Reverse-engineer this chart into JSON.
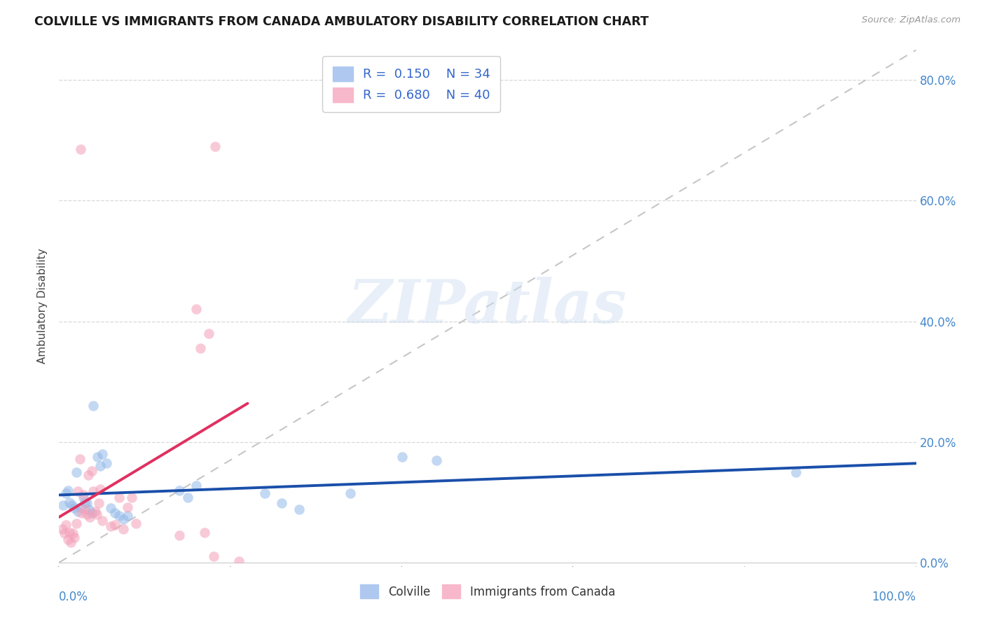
{
  "title": "COLVILLE VS IMMIGRANTS FROM CANADA AMBULATORY DISABILITY CORRELATION CHART",
  "source": "Source: ZipAtlas.com",
  "ylabel": "Ambulatory Disability",
  "colville_color": "#93b8e8",
  "immigrants_color": "#f4a0b8",
  "colville_line_color": "#1a4faa",
  "immigrants_line_color": "#e03060",
  "diagonal_color": "#c0c0c0",
  "background_color": "#ffffff",
  "grid_color": "#d8d8d8",
  "watermark_text": "ZIPatlas",
  "colville_points": [
    [
      0.005,
      0.095
    ],
    [
      0.008,
      0.115
    ],
    [
      0.01,
      0.12
    ],
    [
      0.012,
      0.1
    ],
    [
      0.015,
      0.095
    ],
    [
      0.018,
      0.09
    ],
    [
      0.02,
      0.15
    ],
    [
      0.022,
      0.085
    ],
    [
      0.025,
      0.092
    ],
    [
      0.028,
      0.108
    ],
    [
      0.03,
      0.1
    ],
    [
      0.032,
      0.098
    ],
    [
      0.035,
      0.088
    ],
    [
      0.038,
      0.082
    ],
    [
      0.04,
      0.26
    ],
    [
      0.045,
      0.175
    ],
    [
      0.048,
      0.16
    ],
    [
      0.05,
      0.18
    ],
    [
      0.055,
      0.165
    ],
    [
      0.06,
      0.09
    ],
    [
      0.065,
      0.082
    ],
    [
      0.07,
      0.078
    ],
    [
      0.075,
      0.072
    ],
    [
      0.08,
      0.078
    ],
    [
      0.14,
      0.12
    ],
    [
      0.15,
      0.108
    ],
    [
      0.16,
      0.128
    ],
    [
      0.24,
      0.115
    ],
    [
      0.26,
      0.098
    ],
    [
      0.28,
      0.088
    ],
    [
      0.34,
      0.115
    ],
    [
      0.4,
      0.175
    ],
    [
      0.44,
      0.17
    ],
    [
      0.86,
      0.15
    ]
  ],
  "immigrants_points": [
    [
      0.004,
      0.055
    ],
    [
      0.006,
      0.048
    ],
    [
      0.008,
      0.062
    ],
    [
      0.01,
      0.038
    ],
    [
      0.012,
      0.05
    ],
    [
      0.014,
      0.033
    ],
    [
      0.016,
      0.048
    ],
    [
      0.018,
      0.042
    ],
    [
      0.02,
      0.065
    ],
    [
      0.022,
      0.118
    ],
    [
      0.024,
      0.172
    ],
    [
      0.026,
      0.082
    ],
    [
      0.028,
      0.112
    ],
    [
      0.03,
      0.088
    ],
    [
      0.032,
      0.08
    ],
    [
      0.034,
      0.145
    ],
    [
      0.036,
      0.075
    ],
    [
      0.038,
      0.152
    ],
    [
      0.04,
      0.118
    ],
    [
      0.042,
      0.085
    ],
    [
      0.044,
      0.08
    ],
    [
      0.046,
      0.098
    ],
    [
      0.048,
      0.122
    ],
    [
      0.05,
      0.07
    ],
    [
      0.06,
      0.06
    ],
    [
      0.065,
      0.062
    ],
    [
      0.07,
      0.108
    ],
    [
      0.075,
      0.055
    ],
    [
      0.08,
      0.092
    ],
    [
      0.085,
      0.108
    ],
    [
      0.09,
      0.065
    ],
    [
      0.14,
      0.045
    ],
    [
      0.16,
      0.42
    ],
    [
      0.165,
      0.355
    ],
    [
      0.17,
      0.05
    ],
    [
      0.175,
      0.38
    ],
    [
      0.18,
      0.01
    ],
    [
      0.182,
      0.69
    ],
    [
      0.025,
      0.685
    ],
    [
      0.21,
      0.002
    ]
  ],
  "xlim": [
    0.0,
    1.0
  ],
  "ylim": [
    0.0,
    0.85
  ],
  "ytick_vals": [
    0.0,
    0.2,
    0.4,
    0.6,
    0.8
  ],
  "ytick_labels": [
    "0.0%",
    "20.0%",
    "40.0%",
    "60.0%",
    "80.0%"
  ],
  "xtick_left_label": "0.0%",
  "xtick_right_label": "100.0%"
}
